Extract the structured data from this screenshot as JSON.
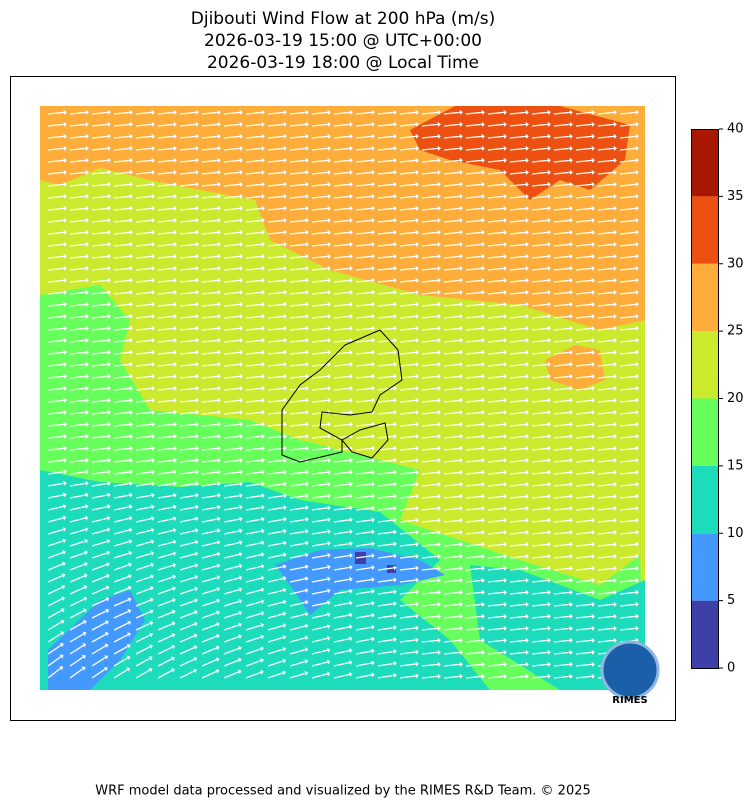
{
  "title": [
    "Djibouti Wind Flow at 200 hPa (m/s)",
    "2026-03-19 15:00 @ UTC+00:00",
    "2026-03-19 18:00 @ Local Time"
  ],
  "colorbar": {
    "lim": [
      0,
      40
    ],
    "ticks": [
      0,
      5,
      10,
      15,
      20,
      25,
      30,
      35,
      40
    ],
    "colors": [
      "#3f3fa8",
      "#4499ff",
      "#1cdcbc",
      "#66ff5c",
      "#cbea2e",
      "#ffad3a",
      "#ee5011",
      "#a81800"
    ]
  },
  "logo": "RIMES",
  "footer": "WRF model data processed and visualized by the RIMES R&D Team. © 2025"
}
